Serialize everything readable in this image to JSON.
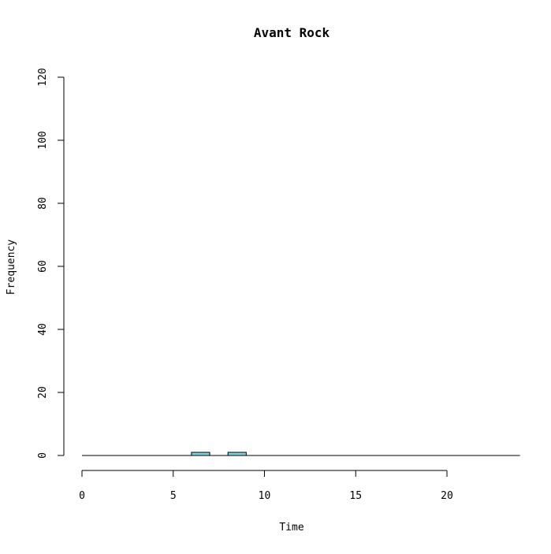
{
  "chart_data": {
    "type": "bar",
    "title": "Avant Rock",
    "xlabel": "Time",
    "ylabel": "Frequency",
    "xlim": [
      0,
      24
    ],
    "ylim": [
      0,
      120
    ],
    "x_ticks": [
      0,
      5,
      10,
      15,
      20
    ],
    "y_ticks": [
      0,
      20,
      40,
      60,
      80,
      100,
      120
    ],
    "bin_width": 1,
    "bins": [
      {
        "start": 6,
        "end": 7,
        "count": 1
      },
      {
        "start": 8,
        "end": 9,
        "count": 1
      }
    ],
    "bar_color": "#7fd3df",
    "bar_stroke": "#000000",
    "grid": false,
    "legend": "none"
  }
}
